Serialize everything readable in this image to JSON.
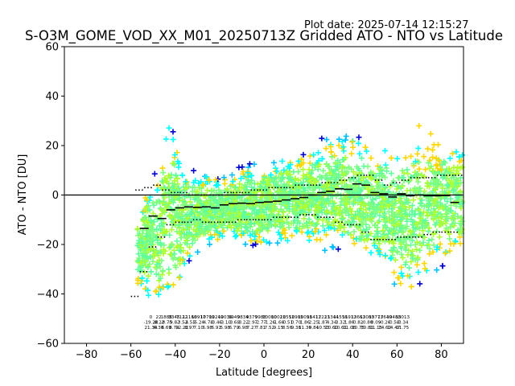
{
  "plot_date": "Plot date: 2025-07-14 12:15:27",
  "chart_data": {
    "type": "scatter",
    "title": "S-O3M_GOME_VOD_XX_M01_20250713Z Gridded ATO - NTO vs Latitude",
    "xlabel": "Latitude [degrees]",
    "ylabel": "ATO - NTO [DU]",
    "xlim": [
      -90,
      90
    ],
    "ylim": [
      -60,
      60
    ],
    "xticks": [
      -80,
      -60,
      -40,
      -20,
      0,
      20,
      40,
      60,
      80
    ],
    "yticks": [
      -60,
      -40,
      -20,
      0,
      20,
      40,
      60
    ],
    "xtick_labels": [
      "−80",
      "−60",
      "−40",
      "−20",
      "0",
      "20",
      "40",
      "60",
      "80"
    ],
    "ytick_labels": [
      "−60",
      "−40",
      "−20",
      "0",
      "20",
      "40",
      "60"
    ],
    "grid": false,
    "reference_line_y": 0,
    "marker": "+",
    "point_colors": [
      "#0000cd",
      "#00bfff",
      "#00ffff",
      "#5fff9f",
      "#7fff7f",
      "#adff2f",
      "#ffd700",
      "#ffff00"
    ],
    "spread_envelope": {
      "lat": [
        -57,
        -52,
        -48,
        -45,
        -42,
        -38,
        -34,
        -30,
        -25,
        -20,
        -15,
        -10,
        -5,
        0,
        5,
        10,
        15,
        20,
        25,
        30,
        35,
        40,
        45,
        50,
        55,
        60,
        65,
        70,
        75,
        80,
        85,
        90
      ],
      "upper": [
        -5,
        8,
        12,
        30,
        35,
        20,
        12,
        10,
        10,
        8,
        10,
        12,
        14,
        15,
        16,
        18,
        18,
        20,
        22,
        25,
        26,
        26,
        27,
        22,
        22,
        24,
        25,
        28,
        30,
        28,
        24,
        22
      ],
      "lower": [
        -40,
        -45,
        -50,
        -52,
        -48,
        -40,
        -30,
        -25,
        -22,
        -20,
        -20,
        -22,
        -22,
        -22,
        -22,
        -22,
        -22,
        -22,
        -22,
        -22,
        -25,
        -28,
        -30,
        -30,
        -32,
        -40,
        -45,
        -40,
        -35,
        -30,
        -28,
        -25
      ]
    },
    "bin_mean": {
      "lat": [
        -54,
        -50,
        -46,
        -42,
        -38,
        -34,
        -30,
        -26,
        -22,
        -18,
        -14,
        -10,
        -6,
        -2,
        2,
        6,
        10,
        14,
        18,
        22,
        26,
        30,
        34,
        38,
        42,
        46,
        50,
        54,
        58,
        62,
        66,
        70,
        74,
        78,
        82,
        86
      ],
      "values": [
        -13.5,
        -8.5,
        -9.5,
        -6.0,
        -5.2,
        -4.8,
        -5.0,
        -4.8,
        -5.2,
        -4.0,
        -3.5,
        -3.3,
        -3.5,
        -3.0,
        -2.8,
        -2.5,
        -2.0,
        -1.5,
        -1.0,
        0.0,
        1.0,
        1.5,
        2.5,
        2.3,
        4.5,
        4.0,
        1.0,
        0.5,
        -0.8,
        0.5,
        -0.3,
        0.0,
        -0.3,
        -0.3,
        -0.2,
        -3.0
      ]
    },
    "bin_upper": {
      "lat": [
        -56,
        -52,
        -48,
        -44,
        -40,
        -36,
        -32,
        -28,
        -24,
        -20,
        -16,
        -12,
        -8,
        -4,
        0,
        4,
        8,
        12,
        16,
        20,
        24,
        28,
        32,
        36,
        40,
        44,
        48,
        52,
        56,
        60,
        64,
        68,
        72,
        76,
        80,
        84,
        88
      ],
      "values": [
        2,
        3,
        4,
        2,
        1,
        1,
        0,
        0,
        0,
        0,
        1,
        1,
        1,
        2,
        2,
        3,
        3,
        3,
        4,
        4,
        4,
        5,
        5,
        6,
        7,
        8,
        8,
        6,
        4,
        5,
        6,
        7,
        7,
        7,
        8,
        8,
        8
      ]
    },
    "bin_lower": {
      "lat": [
        -58,
        -54,
        -50,
        -46,
        -42,
        -38,
        -34,
        -30,
        -26,
        -22,
        -18,
        -14,
        -10,
        -6,
        -2,
        2,
        6,
        10,
        14,
        18,
        22,
        26,
        30,
        34,
        38,
        42,
        46,
        50,
        54,
        58,
        62,
        66,
        70,
        74,
        78,
        82,
        86
      ],
      "values": [
        -41,
        -31,
        -21,
        -17,
        -12,
        -11,
        -11,
        -10,
        -11,
        -11,
        -11,
        -11,
        -10,
        -10,
        -10,
        -10,
        -9,
        -9,
        -9,
        -8,
        -8,
        -9,
        -9,
        -11,
        -12,
        -12,
        -15,
        -18,
        -18,
        -18,
        -17,
        -17,
        -17,
        -16,
        -15,
        -15,
        -15
      ]
    },
    "bin_annotations": [
      {
        "lat": -51.0,
        "lines": [
          "0",
          "-19.28",
          "21.34"
        ]
      },
      {
        "lat": -47.5,
        "lines": [
          "22",
          "-8.22",
          "6.30"
        ]
      },
      {
        "lat": -44.0,
        "lines": [
          "1888",
          "-8.75",
          "6.69"
        ]
      },
      {
        "lat": -40.5,
        "lines": [
          "3345",
          "-9.82",
          "8.74"
        ]
      },
      {
        "lat": -37.0,
        "lines": [
          "7122",
          "-3.52",
          "12.22"
        ]
      },
      {
        "lat": -33.5,
        "lines": [
          "11166",
          "-4.55",
          "8.97"
        ]
      },
      {
        "lat": -29.5,
        "lines": [
          "10917",
          "-5.24",
          "7.10"
        ]
      },
      {
        "lat": -25.5,
        "lines": [
          "10709",
          "-4.78",
          "6.98"
        ]
      },
      {
        "lat": -21.5,
        "lines": [
          "10249",
          "-3.46",
          "6.91"
        ]
      },
      {
        "lat": -17.5,
        "lines": [
          "10039",
          "-3.10",
          "5.98"
        ]
      },
      {
        "lat": -13.5,
        "lines": [
          "9949",
          "-3.69",
          "6.79"
        ]
      },
      {
        "lat": -9.5,
        "lines": [
          "9834",
          "-3.22",
          "6.98"
        ]
      },
      {
        "lat": -5.5,
        "lines": [
          "9379",
          "-2.97",
          "7.27"
        ]
      },
      {
        "lat": -1.5,
        "lines": [
          "9988",
          "-2.77",
          "7.81"
        ]
      },
      {
        "lat": 2.5,
        "lines": [
          "10080",
          "-1.26",
          "7.52"
        ]
      },
      {
        "lat": 6.5,
        "lines": [
          "10021",
          "-1.66",
          "9.15"
        ]
      },
      {
        "lat": 10.5,
        "lines": [
          "10551",
          "-0.51",
          "8.56"
        ]
      },
      {
        "lat": 14.5,
        "lines": [
          "10905",
          "0.70",
          "9.38"
        ]
      },
      {
        "lat": 18.5,
        "lines": [
          "10098",
          "1.86",
          "11.36"
        ]
      },
      {
        "lat": 22.5,
        "lines": [
          "11417",
          "2.25",
          "9.84"
        ]
      },
      {
        "lat": 26.5,
        "lines": [
          "12223",
          "1.87",
          "10.53"
        ]
      },
      {
        "lat": 30.5,
        "lines": [
          "11344",
          "4.34",
          "10.60"
        ]
      },
      {
        "lat": 34.5,
        "lines": [
          "11556",
          "3.32",
          "10.61"
        ]
      },
      {
        "lat": 38.5,
        "lines": [
          "11912",
          "1.86",
          "11.06"
        ]
      },
      {
        "lat": 42.5,
        "lines": [
          "13662",
          "0.82",
          "10.75"
        ]
      },
      {
        "lat": 46.5,
        "lines": [
          "13080",
          "-0.80",
          "10.81"
        ]
      },
      {
        "lat": 50.5,
        "lines": [
          "13773",
          "0.09",
          "11.15"
        ]
      },
      {
        "lat": 54.5,
        "lines": [
          "17640",
          "-0.26",
          "14.60"
        ]
      },
      {
        "lat": 58.5,
        "lines": [
          "19483",
          "-0.58",
          "14.47"
        ]
      },
      {
        "lat": 62.5,
        "lines": [
          "18013",
          "-3.34",
          "11.75"
        ]
      }
    ]
  }
}
